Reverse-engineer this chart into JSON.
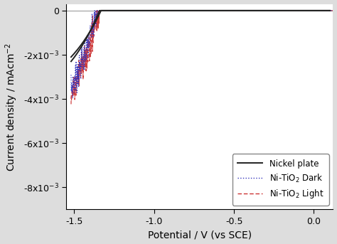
{
  "xlim": [
    -1.55,
    0.12
  ],
  "ylim": [
    -0.009,
    0.0003
  ],
  "xlabel": "Potential / V (vs SCE)",
  "ylabel": "Current density / mAcm$^{-2}$",
  "legend_labels": [
    "Nickel plate",
    "Ni-TiO$_2$ Dark",
    "Ni-TiO$_2$ Light"
  ],
  "nickel_color": "#222222",
  "dark_color": "#3333bb",
  "light_color": "#cc3333",
  "fig_facecolor": "#dddddd",
  "ax_facecolor": "#ffffff",
  "yticks": [
    0,
    -0.002,
    -0.004,
    -0.006,
    -0.008
  ],
  "ytick_labels": [
    "0",
    "-2x10$^{-3}$",
    "-4x10$^{-3}$",
    "-6x10$^{-3}$",
    "-8x10$^{-3}$"
  ],
  "xticks": [
    -1.5,
    -1.0,
    -0.5,
    0.0
  ]
}
